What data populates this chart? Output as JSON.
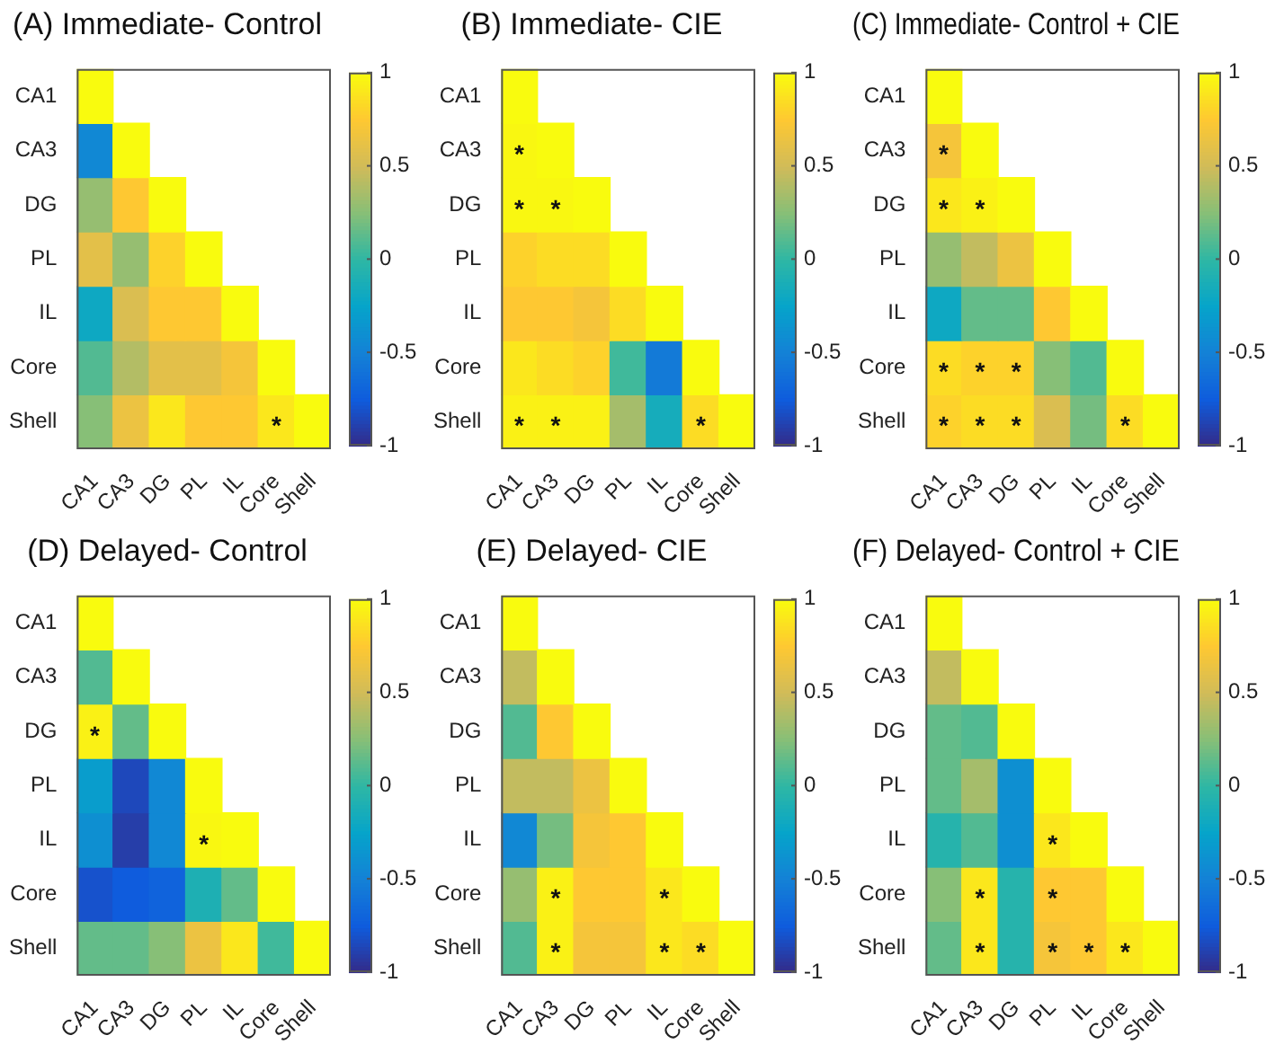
{
  "chart_data": [
    {
      "type": "heatmap",
      "title": "(A) Immediate- Control",
      "categories": [
        "CA1",
        "CA3",
        "DG",
        "PL",
        "IL",
        "Core",
        "Shell"
      ],
      "y_categories": [
        "CA1",
        "CA3",
        "DG",
        "PL",
        "IL",
        "Core",
        "Shell"
      ],
      "cells": [
        [
          1,
          null,
          null,
          null,
          null,
          null,
          null
        ],
        [
          -0.45,
          1,
          null,
          null,
          null,
          null,
          null
        ],
        [
          0.3,
          0.75,
          1,
          null,
          null,
          null,
          null
        ],
        [
          0.6,
          0.3,
          0.8,
          1,
          null,
          null,
          null
        ],
        [
          -0.2,
          0.55,
          0.75,
          0.75,
          1,
          null,
          null
        ],
        [
          0.1,
          0.4,
          0.6,
          0.6,
          0.7,
          1,
          null
        ],
        [
          0.25,
          0.65,
          0.9,
          0.75,
          0.75,
          0.9,
          1
        ]
      ],
      "cell_labels": [
        [
          null,
          null,
          null,
          null,
          null,
          null,
          null
        ],
        [
          null,
          null,
          null,
          null,
          null,
          null,
          null
        ],
        [
          null,
          null,
          null,
          null,
          null,
          null,
          null
        ],
        [
          null,
          null,
          null,
          null,
          null,
          null,
          null
        ],
        [
          null,
          null,
          null,
          null,
          null,
          null,
          null
        ],
        [
          null,
          null,
          null,
          null,
          null,
          null,
          null
        ],
        [
          null,
          null,
          null,
          null,
          null,
          "*",
          null
        ]
      ],
      "clim": [
        -1,
        1
      ],
      "cticks": [
        -1,
        -0.5,
        0,
        0.5,
        1
      ]
    },
    {
      "type": "heatmap",
      "title": "(B) Immediate- CIE",
      "categories": [
        "CA1",
        "CA3",
        "DG",
        "PL",
        "IL",
        "Core",
        "Shell"
      ],
      "y_categories": [
        "CA1",
        "CA3",
        "DG",
        "PL",
        "IL",
        "Core",
        "Shell"
      ],
      "cells": [
        [
          1,
          null,
          null,
          null,
          null,
          null,
          null
        ],
        [
          0.98,
          1,
          null,
          null,
          null,
          null,
          null
        ],
        [
          0.98,
          0.98,
          1,
          null,
          null,
          null,
          null
        ],
        [
          0.8,
          0.85,
          0.85,
          1,
          null,
          null,
          null
        ],
        [
          0.75,
          0.75,
          0.7,
          0.85,
          1,
          null,
          null
        ],
        [
          0.9,
          0.85,
          0.8,
          0.05,
          -0.55,
          1,
          null
        ],
        [
          0.95,
          0.95,
          0.95,
          0.35,
          -0.15,
          0.85,
          1
        ]
      ],
      "cell_labels": [
        [
          null,
          null,
          null,
          null,
          null,
          null,
          null
        ],
        [
          "*",
          null,
          null,
          null,
          null,
          null,
          null
        ],
        [
          "*",
          "*",
          null,
          null,
          null,
          null,
          null
        ],
        [
          null,
          null,
          null,
          null,
          null,
          null,
          null
        ],
        [
          null,
          null,
          null,
          null,
          null,
          null,
          null
        ],
        [
          null,
          null,
          null,
          null,
          null,
          null,
          null
        ],
        [
          "*",
          "*",
          null,
          null,
          null,
          "*",
          null
        ]
      ],
      "clim": [
        -1,
        1
      ],
      "cticks": [
        -1,
        -0.5,
        0,
        0.5,
        1
      ]
    },
    {
      "type": "heatmap",
      "title": "(C) Immediate- Control + CIE",
      "categories": [
        "CA1",
        "CA3",
        "DG",
        "PL",
        "IL",
        "Core",
        "Shell"
      ],
      "y_categories": [
        "CA1",
        "CA3",
        "DG",
        "PL",
        "IL",
        "Core",
        "Shell"
      ],
      "cells": [
        [
          1,
          null,
          null,
          null,
          null,
          null,
          null
        ],
        [
          0.7,
          1,
          null,
          null,
          null,
          null,
          null
        ],
        [
          0.9,
          0.95,
          1,
          null,
          null,
          null,
          null
        ],
        [
          0.3,
          0.45,
          0.65,
          1,
          null,
          null,
          null
        ],
        [
          -0.2,
          0.15,
          0.15,
          0.75,
          1,
          null,
          null
        ],
        [
          0.85,
          0.8,
          0.8,
          0.25,
          0.1,
          1,
          null
        ],
        [
          0.8,
          0.85,
          0.85,
          0.55,
          0.2,
          0.85,
          1
        ]
      ],
      "cell_labels": [
        [
          null,
          null,
          null,
          null,
          null,
          null,
          null
        ],
        [
          "*",
          null,
          null,
          null,
          null,
          null,
          null
        ],
        [
          "*",
          "*",
          null,
          null,
          null,
          null,
          null
        ],
        [
          null,
          null,
          null,
          null,
          null,
          null,
          null
        ],
        [
          null,
          null,
          null,
          null,
          null,
          null,
          null
        ],
        [
          "*",
          "*",
          "*",
          null,
          null,
          null,
          null
        ],
        [
          "*",
          "*",
          "*",
          null,
          null,
          "*",
          null
        ]
      ],
      "clim": [
        -1,
        1
      ],
      "cticks": [
        -1,
        -0.5,
        0,
        0.5,
        1
      ]
    },
    {
      "type": "heatmap",
      "title": "(D) Delayed- Control",
      "categories": [
        "CA1",
        "CA3",
        "DG",
        "PL",
        "IL",
        "Core",
        "Shell"
      ],
      "y_categories": [
        "CA1",
        "CA3",
        "DG",
        "PL",
        "IL",
        "Core",
        "Shell"
      ],
      "cells": [
        [
          1,
          null,
          null,
          null,
          null,
          null,
          null
        ],
        [
          0.1,
          1,
          null,
          null,
          null,
          null,
          null
        ],
        [
          0.95,
          0.15,
          1,
          null,
          null,
          null,
          null
        ],
        [
          -0.3,
          -0.85,
          -0.45,
          1,
          null,
          null,
          null
        ],
        [
          -0.4,
          -0.9,
          -0.45,
          0.98,
          1,
          null,
          null
        ],
        [
          -0.8,
          -0.75,
          -0.7,
          -0.1,
          0.15,
          1,
          null
        ],
        [
          0.15,
          0.15,
          0.25,
          0.65,
          0.9,
          0.05,
          1
        ]
      ],
      "cell_labels": [
        [
          null,
          null,
          null,
          null,
          null,
          null,
          null
        ],
        [
          null,
          null,
          null,
          null,
          null,
          null,
          null
        ],
        [
          "*",
          null,
          null,
          null,
          null,
          null,
          null
        ],
        [
          null,
          null,
          null,
          null,
          null,
          null,
          null
        ],
        [
          null,
          null,
          null,
          "*",
          null,
          null,
          null
        ],
        [
          null,
          null,
          null,
          null,
          null,
          null,
          null
        ],
        [
          null,
          null,
          null,
          null,
          null,
          null,
          null
        ]
      ],
      "clim": [
        -1,
        1
      ],
      "cticks": [
        -1,
        -0.5,
        0,
        0.5,
        1
      ]
    },
    {
      "type": "heatmap",
      "title": "(E) Delayed- CIE",
      "categories": [
        "CA1",
        "CA3",
        "DG",
        "PL",
        "IL",
        "Core",
        "Shell"
      ],
      "y_categories": [
        "CA1",
        "CA3",
        "DG",
        "PL",
        "IL",
        "Core",
        "Shell"
      ],
      "cells": [
        [
          1,
          null,
          null,
          null,
          null,
          null,
          null
        ],
        [
          0.45,
          1,
          null,
          null,
          null,
          null,
          null
        ],
        [
          0.1,
          0.75,
          1,
          null,
          null,
          null,
          null
        ],
        [
          0.45,
          0.45,
          0.65,
          1,
          null,
          null,
          null
        ],
        [
          -0.45,
          0.2,
          0.7,
          0.75,
          1,
          null,
          null
        ],
        [
          0.3,
          0.95,
          0.75,
          0.75,
          0.9,
          1,
          null
        ],
        [
          0.1,
          0.95,
          0.7,
          0.7,
          0.9,
          0.85,
          1
        ]
      ],
      "cell_labels": [
        [
          null,
          null,
          null,
          null,
          null,
          null,
          null
        ],
        [
          null,
          null,
          null,
          null,
          null,
          null,
          null
        ],
        [
          null,
          null,
          null,
          null,
          null,
          null,
          null
        ],
        [
          null,
          null,
          null,
          null,
          null,
          null,
          null
        ],
        [
          null,
          null,
          null,
          null,
          null,
          null,
          null
        ],
        [
          null,
          "*",
          null,
          null,
          "*",
          null,
          null
        ],
        [
          null,
          "*",
          null,
          null,
          "*",
          "*",
          null
        ]
      ],
      "clim": [
        -1,
        1
      ],
      "cticks": [
        -1,
        -0.5,
        0,
        0.5,
        1
      ]
    },
    {
      "type": "heatmap",
      "title": "(F) Delayed- Control + CIE",
      "categories": [
        "CA1",
        "CA3",
        "DG",
        "PL",
        "IL",
        "Core",
        "Shell"
      ],
      "y_categories": [
        "CA1",
        "CA3",
        "DG",
        "PL",
        "IL",
        "Core",
        "Shell"
      ],
      "cells": [
        [
          1,
          null,
          null,
          null,
          null,
          null,
          null
        ],
        [
          0.45,
          1,
          null,
          null,
          null,
          null,
          null
        ],
        [
          0.15,
          0.1,
          1,
          null,
          null,
          null,
          null
        ],
        [
          0.15,
          0.35,
          -0.4,
          1,
          null,
          null,
          null
        ],
        [
          -0.05,
          0.1,
          -0.4,
          0.9,
          1,
          null,
          null
        ],
        [
          0.25,
          0.9,
          -0.05,
          0.75,
          0.75,
          1,
          null
        ],
        [
          0.15,
          0.9,
          -0.05,
          0.7,
          0.75,
          0.9,
          1
        ]
      ],
      "cell_labels": [
        [
          null,
          null,
          null,
          null,
          null,
          null,
          null
        ],
        [
          null,
          null,
          null,
          null,
          null,
          null,
          null
        ],
        [
          null,
          null,
          null,
          null,
          null,
          null,
          null
        ],
        [
          null,
          null,
          null,
          null,
          null,
          null,
          null
        ],
        [
          null,
          null,
          null,
          "*",
          null,
          null,
          null
        ],
        [
          null,
          "*",
          null,
          "*",
          null,
          null,
          null
        ],
        [
          null,
          "*",
          null,
          "*",
          "*",
          "*",
          null
        ]
      ],
      "clim": [
        -1,
        1
      ],
      "cticks": [
        -1,
        -0.5,
        0,
        0.5,
        1
      ]
    }
  ]
}
